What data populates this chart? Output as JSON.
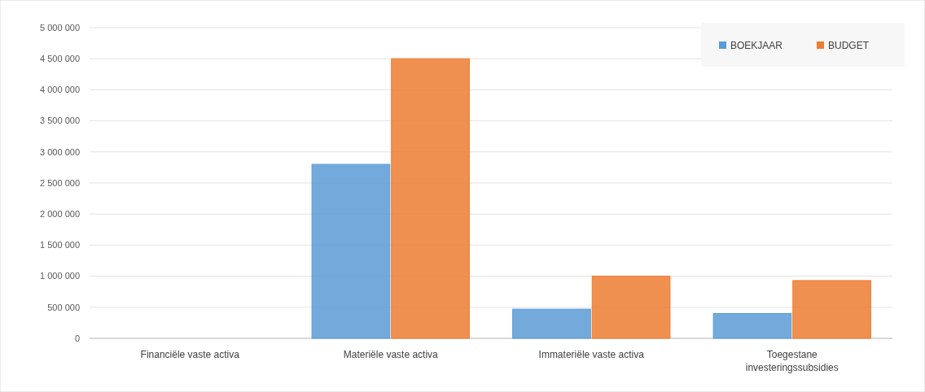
{
  "chart_data": {
    "type": "bar",
    "categories": [
      "Financiële vaste activa",
      "Materiële vaste activa",
      "Immateriële vaste activa",
      "Toegestane investeringssubsidies"
    ],
    "series": [
      {
        "name": "BOEKJAAR",
        "color": "#5b9bd5",
        "values": [
          0,
          2800000,
          470000,
          400000
        ]
      },
      {
        "name": "BUDGET",
        "color": "#ed7d31",
        "values": [
          0,
          4500000,
          1000000,
          930000
        ]
      }
    ],
    "ylim": [
      0,
      5000000
    ],
    "yticks": [
      {
        "value": 0,
        "label": "0"
      },
      {
        "value": 500000,
        "label": "500 000"
      },
      {
        "value": 1000000,
        "label": "1 000 000"
      },
      {
        "value": 1500000,
        "label": "1 500 000"
      },
      {
        "value": 2000000,
        "label": "2 000 000"
      },
      {
        "value": 2500000,
        "label": "2 500 000"
      },
      {
        "value": 3000000,
        "label": "3 000 000"
      },
      {
        "value": 3500000,
        "label": "3 500 000"
      },
      {
        "value": 4000000,
        "label": "4 000 000"
      },
      {
        "value": 4500000,
        "label": "4 500 000"
      },
      {
        "value": 5000000,
        "label": "5 000 000"
      }
    ],
    "grid": "y",
    "legend": "top right"
  }
}
